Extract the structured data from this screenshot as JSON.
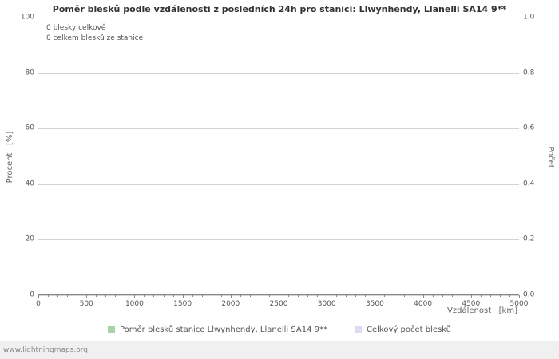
{
  "page": {
    "footer_text": "www.lightningmaps.org"
  },
  "chart_data": {
    "type": "line",
    "title": "Poměr blesků podle vzdálenosti z posledních 24h pro stanici: Llwynhendy, Llanelli SA14 9**",
    "annotations": [
      "0 blesky celkově",
      "0 celkem blesků ze stanice"
    ],
    "grid": true,
    "legend_position": "bottom",
    "x_axis": {
      "label": "Vzdálenost   [km]",
      "range": [
        0,
        5000
      ],
      "ticks": [
        0,
        500,
        1000,
        1500,
        2000,
        2500,
        3000,
        3500,
        4000,
        4500,
        5000
      ],
      "minor_step": 100
    },
    "y_left": {
      "label": "Procent   [%]",
      "range": [
        0,
        100
      ],
      "ticks": [
        0,
        20,
        40,
        60,
        80,
        100
      ]
    },
    "y_right": {
      "label": "Počet",
      "range": [
        0.0,
        1.0
      ],
      "ticks": [
        "0.0",
        "0.2",
        "0.4",
        "0.6",
        "0.8",
        "1.0"
      ]
    },
    "series": [
      {
        "name": "Poměr blesků stanice Llwynhendy, Llanelli SA14 9**",
        "color": "#a9d2a9",
        "values": []
      },
      {
        "name": "Celkový počet blesků",
        "color": "#dcdcf4",
        "values": []
      }
    ]
  }
}
